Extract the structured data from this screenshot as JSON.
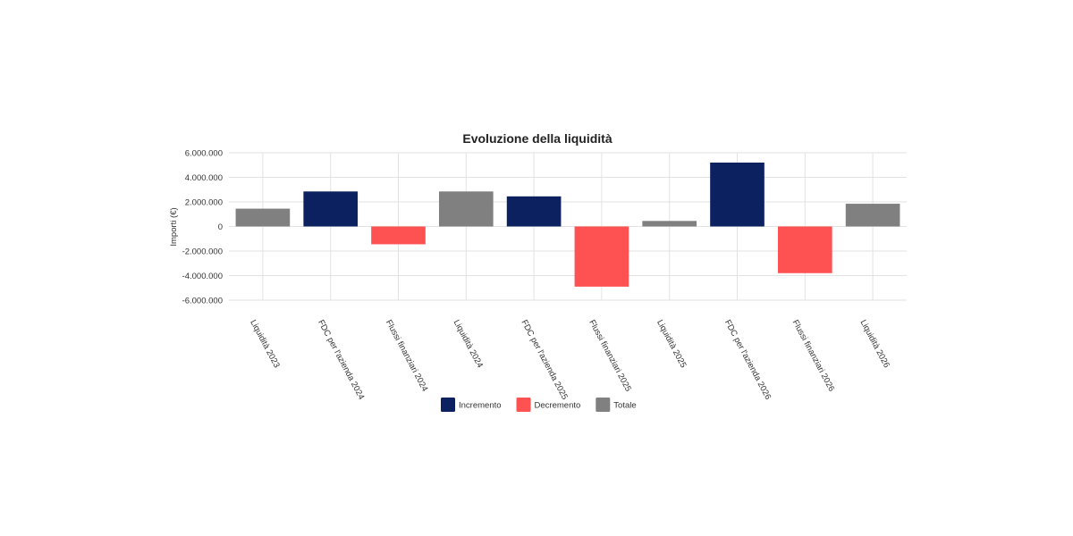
{
  "chart_data": {
    "type": "bar",
    "subtype": "waterfall",
    "title": "Evoluzione della liquidità",
    "xlabel": "",
    "ylabel": "Importi (€)",
    "ylim": [
      -6000000,
      6000000
    ],
    "yticks": [
      6000000,
      4000000,
      2000000,
      0,
      -2000000,
      -4000000,
      -6000000
    ],
    "ytick_labels": [
      "6.000.000",
      "4.000.000",
      "2.000.000",
      "0",
      "-2.000.000",
      "-4.000.000",
      "-6.000.000"
    ],
    "grid": true,
    "legend_position": "bottom",
    "categories": [
      "Liquidità 2023",
      "FDC per l'azienda 2024",
      "Flussi finanziari 2024",
      "Liquidità 2024",
      "FDC per l'azienda 2025",
      "Flussi finanziari 2025",
      "Liquidità 2025",
      "FDC per l'azienda 2026",
      "Flussi finanziari 2026",
      "Liquidità 2026"
    ],
    "values": [
      1450000,
      2850000,
      -1450000,
      2850000,
      2450000,
      -4900000,
      450000,
      5200000,
      -3800000,
      1850000
    ],
    "bar_types": [
      "Totale",
      "Incremento",
      "Decremento",
      "Totale",
      "Incremento",
      "Decremento",
      "Totale",
      "Incremento",
      "Decremento",
      "Totale"
    ],
    "series": [
      {
        "name": "Incremento",
        "color": "#0b2160"
      },
      {
        "name": "Decremento",
        "color": "#fe5151"
      },
      {
        "name": "Totale",
        "color": "#808080"
      }
    ]
  }
}
